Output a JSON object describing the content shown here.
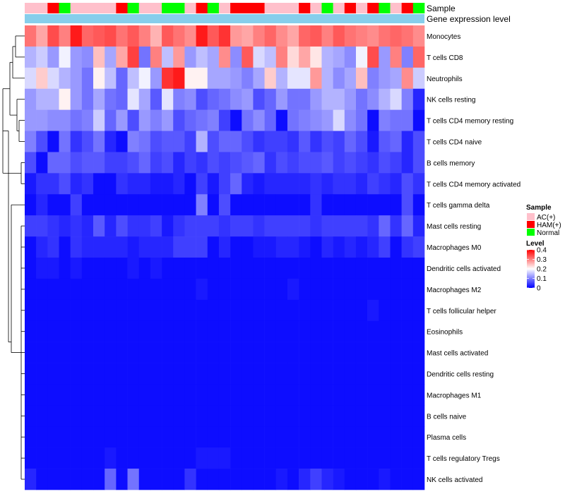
{
  "chart_data": {
    "type": "heatmap",
    "title": "",
    "annotation_rows": [
      "Sample",
      "Gene expression level"
    ],
    "sample_groups": [
      "AC(+)",
      "AC(+)",
      "HAM(+)",
      "Normal",
      "AC(+)",
      "AC(+)",
      "AC(+)",
      "AC(+)",
      "HAM(+)",
      "Normal",
      "AC(+)",
      "AC(+)",
      "Normal",
      "Normal",
      "AC(+)",
      "HAM(+)",
      "Normal",
      "AC(+)",
      "HAM(+)",
      "HAM(+)",
      "HAM(+)",
      "AC(+)",
      "AC(+)",
      "AC(+)",
      "HAM(+)",
      "AC(+)",
      "Normal",
      "AC(+)",
      "HAM(+)",
      "AC(+)",
      "HAM(+)",
      "Normal",
      "AC(+)",
      "HAM(+)",
      "Normal"
    ],
    "rows": [
      "Monocytes",
      "T cells CD8",
      "Neutrophils",
      "NK cells resting",
      "T cells CD4 memory resting",
      "T cells CD4 naive",
      "B cells memory",
      "T cells CD4 memory activated",
      "T cells gamma delta",
      "Mast cells resting",
      "Macrophages M0",
      "Dendritic cells activated",
      "Macrophages M2",
      "T cells follicular helper",
      "Eosinophils",
      "Mast cells activated",
      "Dendritic cells resting",
      "Macrophages M1",
      "B cells naive",
      "Plasma cells",
      "T cells regulatory  Tregs",
      "NK cells activated"
    ],
    "values": [
      [
        0.31,
        0.27,
        0.34,
        0.3,
        0.38,
        0.32,
        0.33,
        0.34,
        0.31,
        0.33,
        0.3,
        0.26,
        0.33,
        0.31,
        0.29,
        0.38,
        0.33,
        0.36,
        0.28,
        0.27,
        0.3,
        0.32,
        0.29,
        0.27,
        0.32,
        0.33,
        0.3,
        0.33,
        0.31,
        0.3,
        0.29,
        0.31,
        0.32,
        0.31,
        0.29
      ],
      [
        0.14,
        0.16,
        0.12,
        0.19,
        0.12,
        0.11,
        0.25,
        0.13,
        0.27,
        0.35,
        0.09,
        0.3,
        0.15,
        0.28,
        0.12,
        0.15,
        0.13,
        0.29,
        0.11,
        0.33,
        0.17,
        0.15,
        0.3,
        0.23,
        0.27,
        0.22,
        0.14,
        0.13,
        0.11,
        0.19,
        0.34,
        0.12,
        0.3,
        0.1,
        0.32
      ],
      [
        0.17,
        0.24,
        0.17,
        0.14,
        0.12,
        0.09,
        0.21,
        0.15,
        0.08,
        0.15,
        0.19,
        0.12,
        0.36,
        0.38,
        0.21,
        0.21,
        0.13,
        0.13,
        0.12,
        0.1,
        0.13,
        0.24,
        0.14,
        0.18,
        0.18,
        0.28,
        0.14,
        0.11,
        0.13,
        0.25,
        0.1,
        0.12,
        0.13,
        0.29,
        0.16
      ],
      [
        0.12,
        0.14,
        0.14,
        0.21,
        0.12,
        0.09,
        0.13,
        0.09,
        0.08,
        0.18,
        0.13,
        0.07,
        0.18,
        0.1,
        0.11,
        0.06,
        0.08,
        0.09,
        0.11,
        0.12,
        0.06,
        0.08,
        0.12,
        0.09,
        0.09,
        0.12,
        0.14,
        0.14,
        0.12,
        0.09,
        0.11,
        0.14,
        0.17,
        0.1,
        0.03
      ],
      [
        0.12,
        0.12,
        0.11,
        0.11,
        0.09,
        0.1,
        0.16,
        0.08,
        0.12,
        0.06,
        0.12,
        0.1,
        0.12,
        0.06,
        0.08,
        0.09,
        0.1,
        0.05,
        0.01,
        0.09,
        0.11,
        0.08,
        0.01,
        0.09,
        0.1,
        0.11,
        0.12,
        0.17,
        0.11,
        0.09,
        0.01,
        0.1,
        0.09,
        0.09,
        0.01
      ],
      [
        0.1,
        0.06,
        0.01,
        0.09,
        0.04,
        0.06,
        0.09,
        0.03,
        0.01,
        0.1,
        0.09,
        0.06,
        0.07,
        0.07,
        0.05,
        0.14,
        0.06,
        0.08,
        0.08,
        0.06,
        0.04,
        0.05,
        0.05,
        0.04,
        0.07,
        0.04,
        0.06,
        0.05,
        0.08,
        0.06,
        0.02,
        0.07,
        0.08,
        0.03,
        0.06
      ],
      [
        0.06,
        0.01,
        0.08,
        0.08,
        0.06,
        0.07,
        0.07,
        0.05,
        0.05,
        0.06,
        0.08,
        0.05,
        0.06,
        0.03,
        0.05,
        0.04,
        0.06,
        0.05,
        0.06,
        0.07,
        0.08,
        0.04,
        0.06,
        0.05,
        0.06,
        0.06,
        0.07,
        0.05,
        0.06,
        0.05,
        0.04,
        0.06,
        0.05,
        0.03,
        0.06
      ],
      [
        0.02,
        0.04,
        0.04,
        0.06,
        0.03,
        0.04,
        0.01,
        0.01,
        0.04,
        0.03,
        0.03,
        0.02,
        0.02,
        0.03,
        0.01,
        0.05,
        0.02,
        0.05,
        0.08,
        0.03,
        0.02,
        0.03,
        0.03,
        0.03,
        0.03,
        0.04,
        0.03,
        0.04,
        0.04,
        0.03,
        0.05,
        0.04,
        0.03,
        0.06,
        0.04
      ],
      [
        0.01,
        0.03,
        0.01,
        0.01,
        0.05,
        0.01,
        0.01,
        0.01,
        0.01,
        0.01,
        0.01,
        0.01,
        0.01,
        0.01,
        0.01,
        0.1,
        0.01,
        0.06,
        0.01,
        0.01,
        0.01,
        0.01,
        0.01,
        0.01,
        0.01,
        0.04,
        0.01,
        0.01,
        0.01,
        0.01,
        0.01,
        0.01,
        0.01,
        0.06,
        0.01
      ],
      [
        0.05,
        0.05,
        0.04,
        0.03,
        0.04,
        0.03,
        0.07,
        0.03,
        0.06,
        0.04,
        0.04,
        0.05,
        0.02,
        0.04,
        0.05,
        0.05,
        0.05,
        0.04,
        0.05,
        0.05,
        0.04,
        0.05,
        0.05,
        0.05,
        0.05,
        0.04,
        0.05,
        0.05,
        0.05,
        0.05,
        0.04,
        0.08,
        0.04,
        0.08,
        0.03
      ],
      [
        0.01,
        0.03,
        0.04,
        0.01,
        0.04,
        0.03,
        0.03,
        0.03,
        0.03,
        0.02,
        0.03,
        0.03,
        0.03,
        0.05,
        0.05,
        0.05,
        0.01,
        0.03,
        0.01,
        0.01,
        0.02,
        0.02,
        0.03,
        0.03,
        0.02,
        0.01,
        0.03,
        0.02,
        0.03,
        0.02,
        0.03,
        0.05,
        0.01,
        0.04,
        0.05
      ],
      [
        0.01,
        0.02,
        0.02,
        0.01,
        0.02,
        0.01,
        0.01,
        0.01,
        0.01,
        0.02,
        0.01,
        0.02,
        0.01,
        0.01,
        0.01,
        0.01,
        0.01,
        0.01,
        0.01,
        0.01,
        0.01,
        0.01,
        0.01,
        0.01,
        0.01,
        0.01,
        0.01,
        0.01,
        0.01,
        0.01,
        0.01,
        0.01,
        0.01,
        0.01,
        0.01
      ],
      [
        0.01,
        0.01,
        0.01,
        0.01,
        0.01,
        0.01,
        0.01,
        0.01,
        0.01,
        0.01,
        0.01,
        0.01,
        0.01,
        0.01,
        0.01,
        0.02,
        0.01,
        0.01,
        0.01,
        0.01,
        0.01,
        0.01,
        0.01,
        0.02,
        0.01,
        0.01,
        0.01,
        0.01,
        0.01,
        0.01,
        0.01,
        0.01,
        0.01,
        0.01,
        0.01
      ],
      [
        0.01,
        0.01,
        0.01,
        0.01,
        0.01,
        0.01,
        0.01,
        0.01,
        0.01,
        0.01,
        0.01,
        0.01,
        0.01,
        0.01,
        0.01,
        0.01,
        0.01,
        0.01,
        0.01,
        0.01,
        0.01,
        0.01,
        0.01,
        0.01,
        0.01,
        0.01,
        0.01,
        0.01,
        0.01,
        0.01,
        0.02,
        0.01,
        0.01,
        0.01,
        0.01
      ],
      [
        0.01,
        0.01,
        0.01,
        0.01,
        0.01,
        0.01,
        0.01,
        0.01,
        0.01,
        0.01,
        0.01,
        0.01,
        0.01,
        0.01,
        0.01,
        0.01,
        0.01,
        0.01,
        0.01,
        0.01,
        0.01,
        0.01,
        0.01,
        0.01,
        0.01,
        0.01,
        0.01,
        0.01,
        0.01,
        0.01,
        0.01,
        0.01,
        0.01,
        0.01,
        0.01
      ],
      [
        0.01,
        0.01,
        0.01,
        0.01,
        0.01,
        0.01,
        0.01,
        0.01,
        0.01,
        0.01,
        0.01,
        0.01,
        0.01,
        0.01,
        0.01,
        0.01,
        0.01,
        0.01,
        0.01,
        0.01,
        0.01,
        0.01,
        0.01,
        0.01,
        0.01,
        0.01,
        0.01,
        0.01,
        0.01,
        0.01,
        0.01,
        0.01,
        0.01,
        0.01,
        0.01
      ],
      [
        0.01,
        0.01,
        0.01,
        0.01,
        0.01,
        0.01,
        0.01,
        0.01,
        0.01,
        0.01,
        0.01,
        0.01,
        0.01,
        0.01,
        0.01,
        0.01,
        0.01,
        0.01,
        0.01,
        0.01,
        0.01,
        0.01,
        0.01,
        0.01,
        0.01,
        0.01,
        0.01,
        0.01,
        0.01,
        0.01,
        0.01,
        0.01,
        0.01,
        0.01,
        0.01
      ],
      [
        0.01,
        0.01,
        0.01,
        0.01,
        0.01,
        0.01,
        0.01,
        0.01,
        0.01,
        0.01,
        0.01,
        0.01,
        0.01,
        0.01,
        0.01,
        0.01,
        0.01,
        0.01,
        0.01,
        0.01,
        0.01,
        0.01,
        0.01,
        0.01,
        0.01,
        0.01,
        0.01,
        0.01,
        0.01,
        0.01,
        0.01,
        0.01,
        0.01,
        0.01,
        0.01
      ],
      [
        0.01,
        0.01,
        0.01,
        0.01,
        0.01,
        0.01,
        0.01,
        0.01,
        0.01,
        0.01,
        0.01,
        0.01,
        0.01,
        0.01,
        0.01,
        0.01,
        0.01,
        0.01,
        0.01,
        0.01,
        0.01,
        0.01,
        0.01,
        0.01,
        0.01,
        0.01,
        0.01,
        0.01,
        0.01,
        0.01,
        0.01,
        0.01,
        0.01,
        0.01,
        0.01
      ],
      [
        0.01,
        0.01,
        0.01,
        0.01,
        0.01,
        0.01,
        0.01,
        0.01,
        0.01,
        0.01,
        0.01,
        0.01,
        0.01,
        0.01,
        0.01,
        0.01,
        0.01,
        0.01,
        0.01,
        0.01,
        0.01,
        0.01,
        0.01,
        0.01,
        0.01,
        0.01,
        0.01,
        0.01,
        0.01,
        0.01,
        0.01,
        0.01,
        0.01,
        0.01,
        0.01
      ],
      [
        0.01,
        0.01,
        0.01,
        0.01,
        0.01,
        0.01,
        0.01,
        0.02,
        0.01,
        0.01,
        0.01,
        0.01,
        0.01,
        0.01,
        0.01,
        0.02,
        0.02,
        0.02,
        0.01,
        0.01,
        0.01,
        0.01,
        0.01,
        0.01,
        0.01,
        0.01,
        0.01,
        0.01,
        0.01,
        0.01,
        0.01,
        0.01,
        0.01,
        0.01,
        0.01
      ],
      [
        0.03,
        0.01,
        0.01,
        0.01,
        0.01,
        0.01,
        0.01,
        0.08,
        0.01,
        0.09,
        0.01,
        0.01,
        0.01,
        0.01,
        0.04,
        0.01,
        0.01,
        0.01,
        0.01,
        0.01,
        0.01,
        0.01,
        0.02,
        0.01,
        0.03,
        0.05,
        0.03,
        0.02,
        0.01,
        0.01,
        0.01,
        0.02,
        0.01,
        0.01,
        0.01
      ]
    ],
    "legend": {
      "sample_title": "Sample",
      "sample_entries": [
        {
          "label": "AC(+)",
          "color": "#FFC0CB"
        },
        {
          "label": "HAM(+)",
          "color": "#FF0000"
        },
        {
          "label": "Normal",
          "color": "#00FF00"
        }
      ],
      "level_title": "Level",
      "level_ticks": [
        "0.4",
        "0.3",
        "0.2",
        "0.1",
        "0"
      ],
      "level_range": [
        0,
        0.4
      ]
    },
    "colors": {
      "low": "#0000FF",
      "mid": "#FFFFFF",
      "high": "#FF0000",
      "expression_bar": "#87CEEB"
    }
  }
}
